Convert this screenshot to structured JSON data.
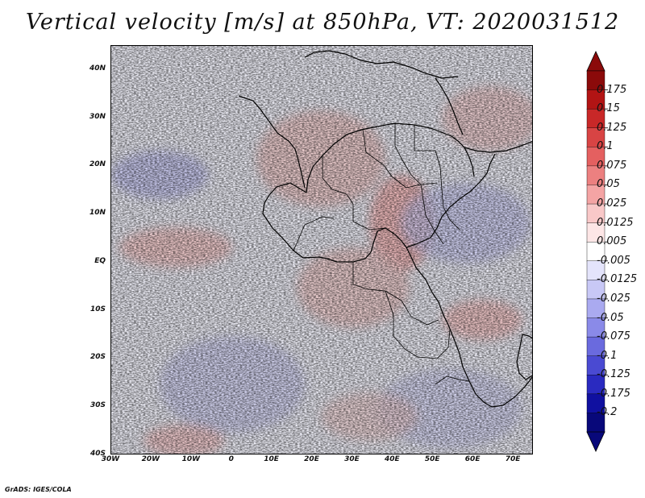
{
  "title": "Vertical velocity [m/s] at 850hPa, VT: 2020031512",
  "credit": "GrADS: IGES/COLA",
  "map": {
    "lat_labels": [
      "40N",
      "30N",
      "20N",
      "10N",
      "EQ",
      "10S",
      "20S",
      "30S",
      "40S"
    ],
    "lon_labels": [
      "30W",
      "20W",
      "10W",
      "0",
      "10E",
      "20E",
      "30E",
      "40E",
      "50E",
      "60E",
      "70E"
    ],
    "lat_range": [
      -40,
      45
    ],
    "lon_range": [
      -30,
      75
    ]
  },
  "colorbar": {
    "labels": [
      "0.175",
      "0.15",
      "0.125",
      "0.1",
      "0.075",
      "0.05",
      "0.025",
      "0.0125",
      "0.005",
      "-0.005",
      "-0.0125",
      "-0.025",
      "-0.05",
      "-0.075",
      "-0.1",
      "-0.125",
      "-0.175",
      "-0.2"
    ],
    "colors": [
      "#8b0a0a",
      "#b21414",
      "#c82828",
      "#d84444",
      "#e46060",
      "#ec8080",
      "#f4a4a4",
      "#f9c8c8",
      "#fde6e6",
      "#ffffff",
      "#e4e4fb",
      "#c8c8f6",
      "#aaaaf0",
      "#8a8ae8",
      "#6a6ade",
      "#4a4ad2",
      "#2a2ac0",
      "#1010a0",
      "#08087a"
    ]
  }
}
